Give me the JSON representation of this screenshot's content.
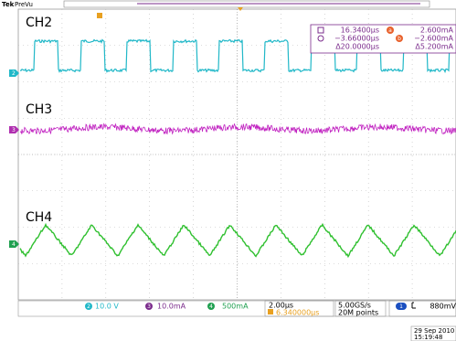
{
  "header": {
    "brand": "Tek",
    "mode": "PreVu"
  },
  "channels": {
    "ch2": "CH2",
    "ch3": "CH3",
    "ch4": "CH4",
    "marker2": "2",
    "marker3": "3",
    "marker4": "4"
  },
  "cursors": {
    "t1": "16.3400µs",
    "i1_marker": "a",
    "i1": "2.600mA",
    "t2": "−3.66000µs",
    "i2_marker": "b",
    "i2": "−2.600mA",
    "dt": "Δ20.0000µs",
    "di": "Δ5.200mA"
  },
  "status": {
    "ch2_badge": "2",
    "ch2_scale": "10.0 V",
    "ch3_badge": "3",
    "ch3_scale": "10.0mA",
    "ch4_badge": "4",
    "ch4_scale": "500mA",
    "timebase": "2.00µs",
    "trigger_pos": "6.340000µs",
    "sample_rate": "5.00GS/s",
    "record": "20M points",
    "trig_badge": "1",
    "trig_level": "880mV"
  },
  "datetime": {
    "date": "29 Sep 2010",
    "time": "15:19:48"
  }
}
